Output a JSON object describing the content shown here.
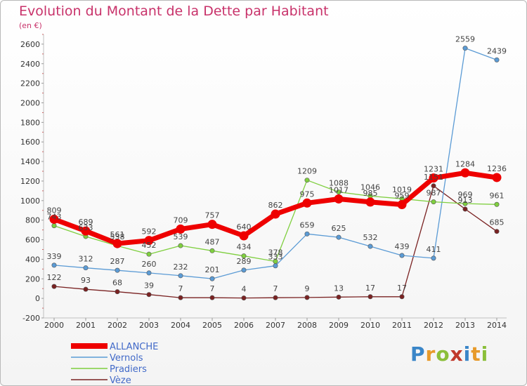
{
  "title": "Evolution du Montant de la Dette par Habitant",
  "unit": "(en €)",
  "brand": "Proxiti",
  "chart_data": {
    "type": "line",
    "title": "Evolution du Montant de la Dette par Habitant",
    "ylabel": "(en €)",
    "ylim": [
      -200,
      2700
    ],
    "yticks": [
      -200,
      0,
      200,
      400,
      600,
      800,
      1000,
      1200,
      1400,
      1600,
      1800,
      2000,
      2200,
      2400,
      2600
    ],
    "x": [
      "2000",
      "2001",
      "2002",
      "2003",
      "2004",
      "2005",
      "2006",
      "2007",
      "2008",
      "2009",
      "2010",
      "2011",
      "2012",
      "2013",
      "2014"
    ],
    "grid": false,
    "legend": "bottom-left",
    "series": [
      {
        "name": "ALLANCHE",
        "color": "#ee0000",
        "values": [
          809,
          689,
          561,
          592,
          709,
          757,
          640,
          862,
          975,
          1017,
          985,
          959,
          1231,
          1284,
          1236
        ]
      },
      {
        "name": "Vernols",
        "color": "#5b9bd5",
        "values": [
          339,
          312,
          287,
          260,
          232,
          201,
          289,
          333,
          659,
          625,
          532,
          439,
          411,
          2559,
          2439
        ]
      },
      {
        "name": "Pradiers",
        "color": "#7fcf3f",
        "values": [
          743,
          633,
          538,
          452,
          539,
          487,
          434,
          378,
          1209,
          1088,
          1046,
          1019,
          987,
          969,
          961
        ]
      },
      {
        "name": "Vèze",
        "color": "#7a2222",
        "values": [
          122,
          93,
          68,
          39,
          7,
          7,
          4,
          7,
          9,
          13,
          17,
          17,
          1151,
          913,
          685
        ]
      }
    ]
  }
}
